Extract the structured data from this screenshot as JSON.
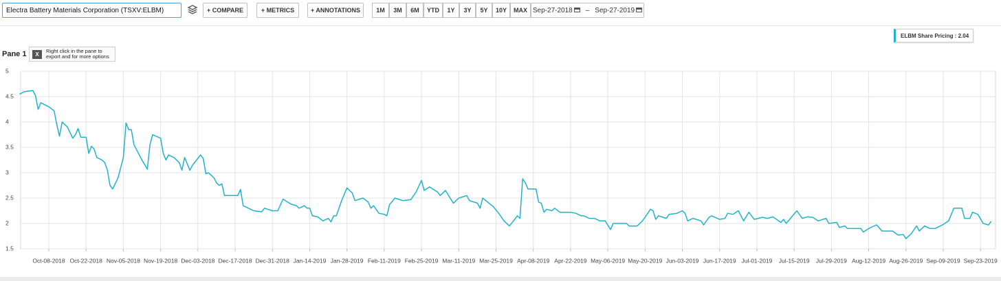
{
  "toolbar": {
    "search": "Electra Battery Materials Corporation (TSXV:ELBM)",
    "buttons": [
      "+ COMPARE",
      "+ METRICS",
      "+ ANNOTATIONS"
    ],
    "ranges": [
      "1M",
      "3M",
      "6M",
      "YTD",
      "1Y",
      "3Y",
      "5Y",
      "10Y",
      "MAX"
    ],
    "date_from": "Sep-27-2018",
    "date_sep": "–",
    "date_to": "Sep-27-2019"
  },
  "pane": {
    "title": "Pane 1",
    "hint": "Right click in the pane to export and for more options"
  },
  "chart_data": {
    "type": "line",
    "x": [
      "Sep-27-2018",
      "Sep-29-2018",
      "Oct-02-2018",
      "Oct-03-2018",
      "Oct-04-2018",
      "Oct-05-2018",
      "Oct-08-2018",
      "Oct-10-2018",
      "Oct-11-2018",
      "Oct-12-2018",
      "Oct-13-2018",
      "Oct-14-2018",
      "Oct-15-2018",
      "Oct-17-2018",
      "Oct-18-2018",
      "Oct-19-2018",
      "Oct-20-2018",
      "Oct-22-2018",
      "Oct-23-2018",
      "Oct-24-2018",
      "Oct-25-2018",
      "Oct-26-2018",
      "Oct-28-2018",
      "Oct-29-2018",
      "Oct-30-2018",
      "Oct-31-2018",
      "Nov-01-2018",
      "Nov-03-2018",
      "Nov-05-2018",
      "Nov-06-2018",
      "Nov-07-2018",
      "Nov-08-2018",
      "Nov-09-2018",
      "Nov-12-2018",
      "Nov-14-2018",
      "Nov-15-2018",
      "Nov-16-2018",
      "Nov-19-2018",
      "Nov-20-2018",
      "Nov-21-2018",
      "Nov-22-2018",
      "Nov-24-2018",
      "Nov-26-2018",
      "Nov-27-2018",
      "Nov-28-2018",
      "Nov-30-2018",
      "Dec-01-2018",
      "Dec-04-2018",
      "Dec-05-2018",
      "Dec-06-2018",
      "Dec-07-2018",
      "Dec-09-2018",
      "Dec-10-2018",
      "Dec-11-2018",
      "Dec-12-2018",
      "Dec-13-2018",
      "Dec-18-2018",
      "Dec-19-2018",
      "Dec-20-2018",
      "Dec-22-2018",
      "Dec-24-2018",
      "Dec-27-2018",
      "Dec-28-2018",
      "Dec-31-2018",
      "Jan-02-2019",
      "Jan-04-2019",
      "Jan-07-2019",
      "Jan-09-2019",
      "Jan-10-2019",
      "Jan-12-2019",
      "Jan-13-2019",
      "Jan-14-2019",
      "Jan-15-2019",
      "Jan-17-2019",
      "Jan-19-2019",
      "Jan-21-2019",
      "Jan-22-2019",
      "Jan-23-2019",
      "Jan-24-2019",
      "Jan-26-2019",
      "Jan-28-2019",
      "Jan-30-2019",
      "Jan-31-2019",
      "Feb-03-2019",
      "Feb-05-2019",
      "Feb-06-2019",
      "Feb-07-2019",
      "Feb-09-2019",
      "Feb-11-2019",
      "Feb-12-2019",
      "Feb-13-2019",
      "Feb-15-2019",
      "Feb-18-2019",
      "Feb-21-2019",
      "Feb-23-2019",
      "Feb-25-2019",
      "Feb-26-2019",
      "Feb-28-2019",
      "Mar-03-2019",
      "Mar-04-2019",
      "Mar-06-2019",
      "Mar-08-2019",
      "Mar-09-2019",
      "Mar-11-2019",
      "Mar-14-2019",
      "Mar-15-2019",
      "Mar-18-2019",
      "Mar-19-2019",
      "Mar-20-2019",
      "Mar-24-2019",
      "Mar-26-2019",
      "Mar-28-2019",
      "Mar-30-2019",
      "Apr-01-2019",
      "Apr-02-2019",
      "Apr-03-2019",
      "Apr-04-2019",
      "Apr-05-2019",
      "Apr-06-2019",
      "Apr-09-2019",
      "Apr-10-2019",
      "Apr-11-2019",
      "Apr-12-2019",
      "Apr-13-2019",
      "Apr-15-2019",
      "Apr-16-2019",
      "Apr-18-2019",
      "Apr-22-2019",
      "Apr-24-2019",
      "Apr-26-2019",
      "Apr-27-2019",
      "Apr-29-2019",
      "May-01-2019",
      "May-03-2019",
      "May-05-2019",
      "May-07-2019",
      "May-08-2019",
      "May-11-2019",
      "May-13-2019",
      "May-14-2019",
      "May-17-2019",
      "May-19-2019",
      "May-21-2019",
      "May-22-2019",
      "May-23-2019",
      "May-24-2019",
      "May-25-2019",
      "May-28-2019",
      "May-29-2019",
      "Jun-01-2019",
      "Jun-03-2019",
      "Jun-04-2019",
      "Jun-05-2019",
      "Jun-07-2019",
      "Jun-10-2019",
      "Jun-11-2019",
      "Jun-13-2019",
      "Jun-14-2019",
      "Jun-17-2019",
      "Jun-19-2019",
      "Jun-20-2019",
      "Jun-22-2019",
      "Jun-24-2019",
      "Jun-26-2019",
      "Jun-28-2019",
      "Jun-30-2019",
      "Jul-03-2019",
      "Jul-05-2019",
      "Jul-07-2019",
      "Jul-10-2019",
      "Jul-11-2019",
      "Jul-12-2019",
      "Jul-16-2019",
      "Jul-18-2019",
      "Jul-20-2019",
      "Jul-22-2019",
      "Jul-24-2019",
      "Jul-27-2019",
      "Jul-28-2019",
      "Jul-31-2019",
      "Aug-01-2019",
      "Aug-03-2019",
      "Aug-04-2019",
      "Aug-09-2019",
      "Aug-10-2019",
      "Aug-12-2019",
      "Aug-14-2019",
      "Aug-15-2019",
      "Aug-17-2019",
      "Aug-21-2019",
      "Aug-23-2019",
      "Aug-25-2019",
      "Aug-26-2019",
      "Aug-28-2019",
      "Aug-30-2019",
      "Aug-31-2019",
      "Sep-02-2019",
      "Sep-04-2019",
      "Sep-06-2019",
      "Sep-09-2019",
      "Sep-11-2019",
      "Sep-13-2019",
      "Sep-16-2019",
      "Sep-17-2019",
      "Sep-19-2019",
      "Sep-20-2019",
      "Sep-22-2019",
      "Sep-24-2019",
      "Sep-26-2019",
      "Sep-27-2019"
    ],
    "series": [
      {
        "name": "ELBM Share Pricing : 2.04",
        "color": "#1fb3c9",
        "values": [
          4.55,
          4.6,
          4.62,
          4.52,
          4.25,
          4.38,
          4.3,
          4.22,
          3.95,
          3.72,
          4.0,
          3.95,
          3.9,
          3.68,
          3.75,
          3.87,
          3.7,
          3.7,
          3.38,
          3.52,
          3.47,
          3.3,
          3.25,
          3.2,
          3.05,
          2.75,
          2.68,
          2.9,
          3.3,
          3.98,
          3.85,
          3.85,
          3.55,
          3.25,
          3.07,
          3.55,
          3.75,
          3.68,
          3.38,
          3.25,
          3.35,
          3.3,
          3.2,
          3.05,
          3.3,
          3.05,
          3.15,
          3.35,
          3.28,
          2.98,
          3.0,
          2.9,
          2.8,
          2.75,
          2.78,
          2.55,
          2.55,
          2.67,
          2.35,
          2.3,
          2.25,
          2.23,
          2.3,
          2.25,
          2.25,
          2.48,
          2.38,
          2.35,
          2.3,
          2.35,
          2.3,
          2.3,
          2.15,
          2.13,
          2.05,
          2.1,
          2.03,
          2.15,
          2.15,
          2.45,
          2.7,
          2.6,
          2.45,
          2.5,
          2.42,
          2.3,
          2.35,
          2.2,
          2.18,
          2.15,
          2.37,
          2.5,
          2.45,
          2.47,
          2.62,
          2.85,
          2.65,
          2.72,
          2.62,
          2.55,
          2.65,
          2.48,
          2.4,
          2.5,
          2.55,
          2.45,
          2.4,
          2.3,
          2.5,
          2.33,
          2.2,
          2.05,
          1.95,
          2.08,
          2.15,
          2.1,
          2.88,
          2.8,
          2.68,
          2.68,
          2.42,
          2.4,
          2.22,
          2.28,
          2.25,
          2.3,
          2.22,
          2.22,
          2.2,
          2.15,
          2.15,
          2.1,
          2.1,
          2.05,
          2.05,
          1.88,
          2.0,
          2.0,
          2.0,
          1.95,
          1.95,
          2.05,
          2.2,
          2.28,
          2.25,
          2.08,
          2.15,
          2.1,
          2.18,
          2.2,
          2.25,
          2.2,
          2.05,
          2.1,
          2.05,
          1.97,
          2.12,
          2.15,
          2.08,
          2.1,
          2.2,
          2.18,
          2.25,
          2.05,
          2.22,
          2.08,
          2.12,
          2.1,
          2.13,
          2.02,
          2.08,
          2.0,
          2.25,
          2.1,
          2.13,
          2.12,
          2.05,
          2.1,
          2.0,
          2.02,
          1.92,
          1.95,
          1.9,
          1.9,
          1.83,
          1.9,
          1.95,
          1.97,
          1.85,
          1.85,
          1.77,
          1.78,
          1.7,
          1.8,
          1.95,
          1.85,
          1.95,
          1.9,
          1.9,
          1.98,
          2.05,
          2.3,
          2.3,
          2.1,
          2.1,
          2.22,
          2.18,
          2.0,
          1.97,
          2.04
        ]
      }
    ],
    "xlim": [
      "Sep-27-2018",
      "Sep-27-2019"
    ],
    "xticks": [
      "Oct-08-2018",
      "Oct-22-2018",
      "Nov-05-2018",
      "Nov-19-2018",
      "Dec-03-2018",
      "Dec-17-2018",
      "Dec-31-2018",
      "Jan-14-2019",
      "Jan-28-2019",
      "Feb-11-2019",
      "Feb-25-2019",
      "Mar-11-2019",
      "Mar-25-2019",
      "Apr-08-2019",
      "Apr-22-2019",
      "May-06-2019",
      "May-20-2019",
      "Jun-03-2019",
      "Jun-17-2019",
      "Jul-01-2019",
      "Jul-15-2019",
      "Jul-29-2019",
      "Aug-12-2019",
      "Aug-26-2019",
      "Sep-09-2019",
      "Sep-23-2019"
    ],
    "ylim": [
      1.5,
      5
    ],
    "yticks": [
      1.5,
      2,
      2.5,
      3,
      3.5,
      4,
      4.5,
      5
    ],
    "grid": true
  }
}
